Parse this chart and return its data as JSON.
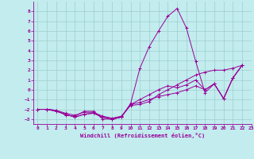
{
  "xlabel": "Windchill (Refroidissement éolien,°C)",
  "xlim": [
    -0.5,
    23
  ],
  "ylim": [
    -3.5,
    9.0
  ],
  "xticks": [
    0,
    1,
    2,
    3,
    4,
    5,
    6,
    7,
    8,
    9,
    10,
    11,
    12,
    13,
    14,
    15,
    16,
    17,
    18,
    19,
    20,
    21,
    22,
    23
  ],
  "yticks": [
    -3,
    -2,
    -1,
    0,
    1,
    2,
    3,
    4,
    5,
    6,
    7,
    8
  ],
  "bg_color": "#c2ecee",
  "line_color": "#990099",
  "grid_color": "#9ecece",
  "lines": [
    {
      "x": [
        0,
        1,
        2,
        3,
        4,
        5,
        6,
        7,
        8,
        9,
        10,
        11,
        12,
        13,
        14,
        15,
        16,
        17,
        18,
        19,
        20,
        21,
        22
      ],
      "y": [
        -2.0,
        -2.0,
        -2.1,
        -2.6,
        -2.7,
        -2.2,
        -2.2,
        -3.0,
        -3.0,
        -2.8,
        -1.4,
        2.2,
        4.4,
        6.0,
        7.5,
        8.3,
        6.3,
        2.9,
        -0.3,
        0.6,
        -0.9,
        1.2,
        2.5
      ]
    },
    {
      "x": [
        0,
        1,
        2,
        3,
        4,
        5,
        6,
        7,
        8,
        9,
        10,
        11,
        12,
        13,
        14,
        15,
        16,
        17,
        18,
        19,
        20,
        21,
        22
      ],
      "y": [
        -2.0,
        -2.0,
        -2.2,
        -2.5,
        -2.8,
        -2.5,
        -2.4,
        -2.8,
        -3.0,
        -2.8,
        -1.5,
        -1.0,
        -0.5,
        0.0,
        0.4,
        0.2,
        0.5,
        1.0,
        0.0,
        0.6,
        -0.9,
        1.2,
        2.5
      ]
    },
    {
      "x": [
        0,
        1,
        2,
        3,
        4,
        5,
        6,
        7,
        8,
        9,
        10,
        11,
        12,
        13,
        14,
        15,
        16,
        17,
        18,
        19,
        20,
        21,
        22
      ],
      "y": [
        -2.0,
        -2.0,
        -2.1,
        -2.4,
        -2.6,
        -2.3,
        -2.3,
        -2.7,
        -2.9,
        -2.7,
        -1.6,
        -1.5,
        -1.2,
        -0.5,
        0.0,
        0.5,
        1.0,
        1.5,
        1.8,
        2.0,
        2.0,
        2.2,
        2.5
      ]
    },
    {
      "x": [
        0,
        1,
        2,
        3,
        4,
        5,
        6,
        7,
        8,
        9,
        10,
        11,
        12,
        13,
        14,
        15,
        16,
        17,
        18,
        19,
        20,
        21,
        22
      ],
      "y": [
        -2.0,
        -2.0,
        -2.2,
        -2.5,
        -2.8,
        -2.5,
        -2.4,
        -2.8,
        -3.0,
        -2.8,
        -1.5,
        -1.3,
        -1.0,
        -0.7,
        -0.5,
        -0.3,
        0.0,
        0.4,
        0.0,
        0.6,
        -0.9,
        1.2,
        2.5
      ]
    }
  ]
}
